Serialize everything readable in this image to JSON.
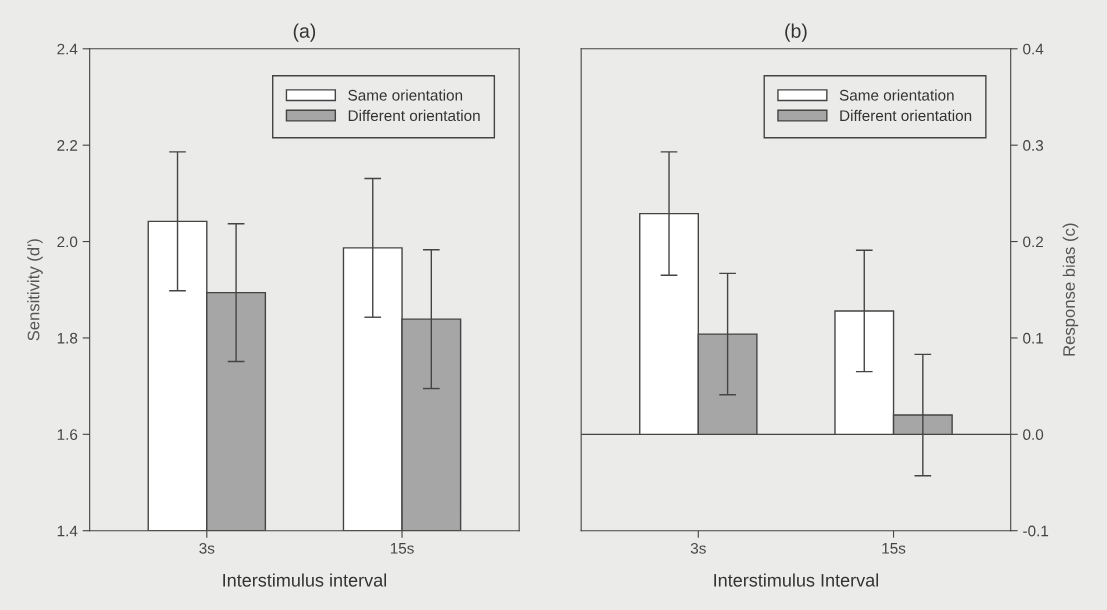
{
  "chart_data": [
    {
      "type": "bar",
      "title": "(a)",
      "xlabel": "Interstimulus interval",
      "ylabel": "Sensitivity (d')",
      "categories": [
        "3s",
        "15s"
      ],
      "ylim": [
        1.4,
        2.4
      ],
      "yticks": [
        {
          "value": 1.4,
          "label": "1.4"
        },
        {
          "value": 1.6,
          "label": "1.6"
        },
        {
          "value": 1.8,
          "label": "1.8"
        },
        {
          "value": 2.0,
          "label": "2.0"
        },
        {
          "value": 2.2,
          "label": "2.2"
        },
        {
          "value": 2.4,
          "label": "2.4"
        }
      ],
      "legend": "top right",
      "grid": false,
      "series": [
        {
          "name": "Same orientation",
          "color": "#ffffff",
          "values": [
            2.042,
            1.987
          ],
          "errors": [
            0.144,
            0.144
          ]
        },
        {
          "name": "Different orientation",
          "color": "#a6a6a6",
          "values": [
            1.894,
            1.839
          ],
          "errors": [
            0.143,
            0.144
          ]
        }
      ]
    },
    {
      "type": "bar",
      "title": "(b)",
      "xlabel": "Interstimulus Interval",
      "ylabel": "Response bias (c)",
      "categories": [
        "3s",
        "15s"
      ],
      "ylim": [
        -0.1,
        0.4
      ],
      "yticks": [
        {
          "value": -0.1,
          "label": "-0.1"
        },
        {
          "value": 0.0,
          "label": "0.0"
        },
        {
          "value": 0.1,
          "label": "0.1"
        },
        {
          "value": 0.2,
          "label": "0.2"
        },
        {
          "value": 0.3,
          "label": "0.3"
        },
        {
          "value": 0.4,
          "label": "0.4"
        }
      ],
      "legend": "top right",
      "grid": false,
      "ref_lines": [
        {
          "axis": "y",
          "value": 0.0,
          "label": null
        }
      ],
      "series": [
        {
          "name": "Same orientation",
          "color": "#ffffff",
          "values": [
            0.229,
            0.128
          ],
          "errors": [
            0.064,
            0.063
          ]
        },
        {
          "name": "Different orientation",
          "color": "#a6a6a6",
          "values": [
            0.104,
            0.02
          ],
          "errors": [
            0.063,
            0.063
          ]
        }
      ]
    }
  ]
}
